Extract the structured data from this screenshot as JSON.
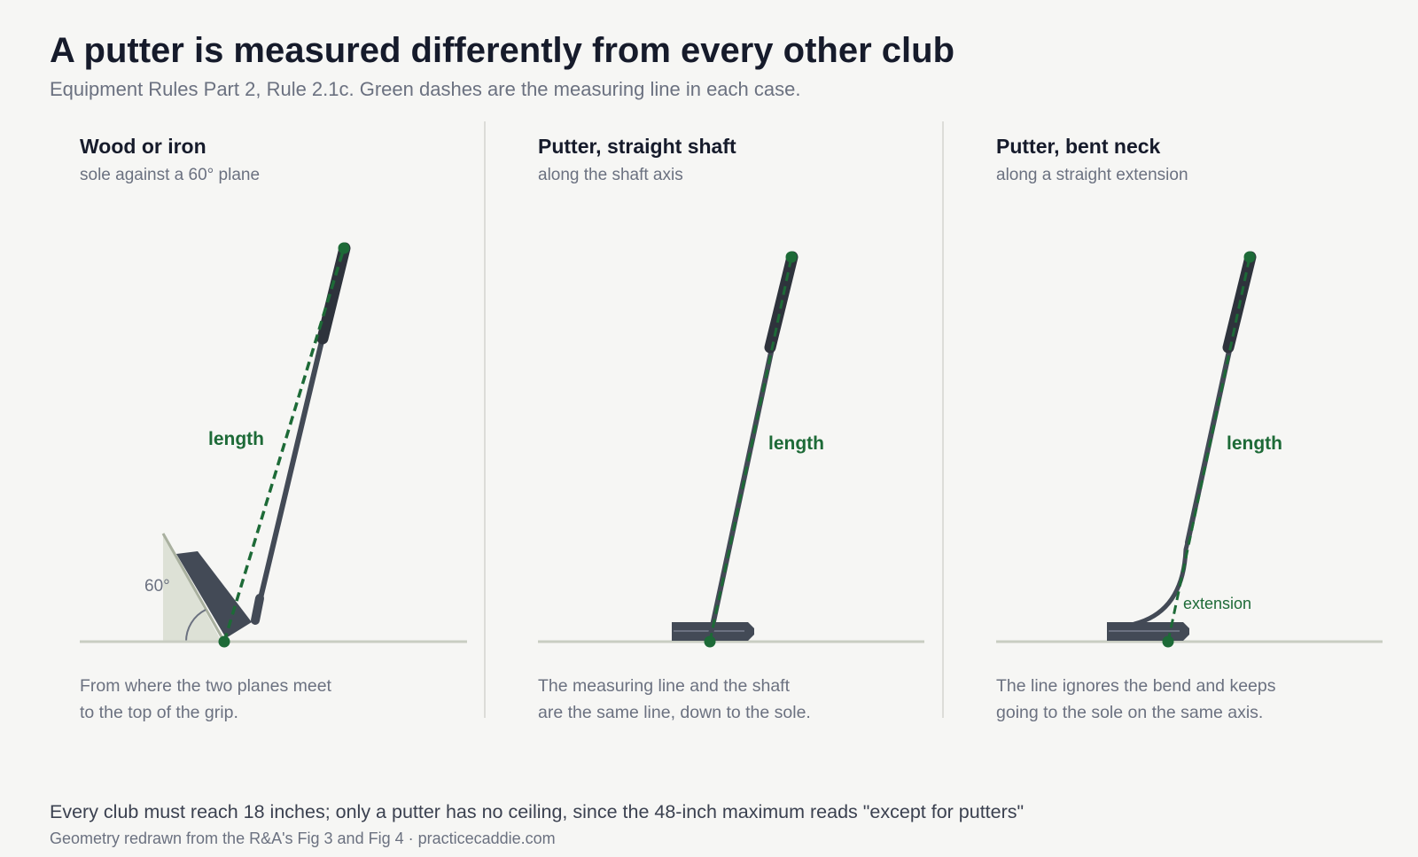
{
  "header": {
    "title": "A putter is measured differently from every other club",
    "subtitle": "Equipment Rules Part 2, Rule 2.1c. Green dashes are the measuring line in each case."
  },
  "panels": [
    {
      "title": "Wood or iron",
      "subtitle": "sole against a 60° plane",
      "label": "length",
      "angle": "60°",
      "caption": [
        "From where the two planes meet",
        "to the top of the grip."
      ]
    },
    {
      "title": "Putter, straight shaft",
      "subtitle": "along the shaft axis",
      "label": "length",
      "caption": [
        "The measuring line and the shaft",
        "are the same line, down to the sole."
      ]
    },
    {
      "title": "Putter, bent neck",
      "subtitle": "along a straight extension",
      "label": "length",
      "extension": "extension",
      "caption": [
        "The line ignores the bend and keeps",
        "going to the sole on the same axis."
      ]
    }
  ],
  "footer": {
    "note": "Every club must reach 18 inches; only a putter has no ceiling, since the 48-inch maximum reads \"except for putters\"",
    "source": "Geometry redrawn from the R&A's Fig 3 and Fig 4 · practicecaddie.com"
  }
}
